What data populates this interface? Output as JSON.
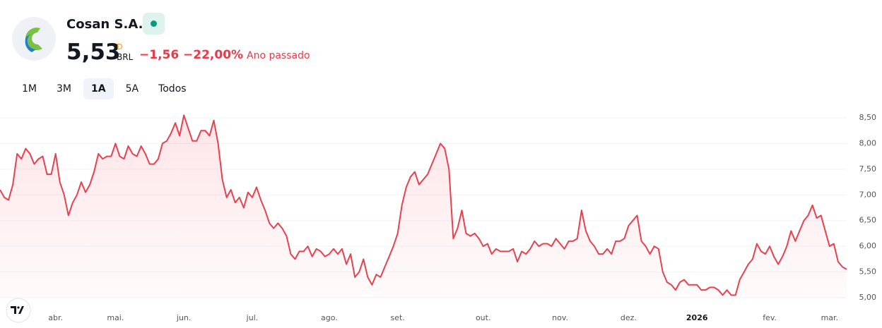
{
  "header": {
    "name": "Cosan S.A.",
    "price": "5,53",
    "flag": "D",
    "currency": "BRL",
    "change": "−1,56",
    "change_pct": "−22,00%",
    "period": "Ano passado"
  },
  "ranges": [
    "1M",
    "3M",
    "1A",
    "5A",
    "Todos"
  ],
  "chart_data": {
    "type": "line",
    "color": "#e8414f",
    "grid": true,
    "ylim": [
      4.93,
      8.72
    ],
    "yticks": [
      {
        "value": 5,
        "label": "5,00"
      },
      {
        "value": 5.5,
        "label": "5,50"
      },
      {
        "value": 6,
        "label": "6,00"
      },
      {
        "value": 6.5,
        "label": "6,50"
      },
      {
        "value": 7,
        "label": "7,00"
      },
      {
        "value": 7.5,
        "label": "7,50"
      },
      {
        "value": 8,
        "label": "8,00"
      },
      {
        "value": 8.5,
        "label": "8,50"
      }
    ],
    "categories": [
      null,
      null,
      null,
      null,
      null,
      null,
      null,
      null,
      null,
      null,
      null,
      null,
      null,
      "abr.",
      null,
      null,
      null,
      null,
      null,
      null,
      null,
      null,
      null,
      null,
      null,
      null,
      null,
      "mai.",
      null,
      null,
      null,
      null,
      null,
      null,
      null,
      null,
      null,
      null,
      null,
      null,
      null,
      null,
      null,
      "jun.",
      null,
      null,
      null,
      null,
      null,
      null,
      null,
      null,
      null,
      null,
      null,
      null,
      null,
      null,
      null,
      "jul.",
      null,
      null,
      null,
      null,
      null,
      null,
      null,
      null,
      null,
      null,
      null,
      null,
      null,
      null,
      null,
      null,
      null,
      "ago.",
      null,
      null,
      null,
      null,
      null,
      null,
      null,
      null,
      null,
      null,
      null,
      null,
      null,
      null,
      null,
      "set.",
      null,
      null,
      null,
      null,
      null,
      null,
      null,
      null,
      null,
      null,
      null,
      null,
      null,
      null,
      null,
      null,
      null,
      null,
      null,
      "out.",
      null,
      null,
      null,
      null,
      null,
      null,
      null,
      null,
      null,
      null,
      null,
      null,
      null,
      null,
      null,
      null,
      null,
      "nov.",
      null,
      null,
      null,
      null,
      null,
      null,
      null,
      null,
      null,
      null,
      null,
      null,
      null,
      null,
      null,
      "dez.",
      null,
      null,
      null,
      null,
      null,
      null,
      null,
      null,
      null,
      null,
      null,
      null,
      null,
      null,
      null,
      "2026",
      null,
      null,
      null,
      null,
      null,
      null,
      null,
      null,
      null,
      null,
      null,
      null,
      null,
      null,
      null,
      null,
      "fev.",
      null,
      null,
      null,
      null,
      null,
      null,
      null,
      null,
      null,
      null,
      null,
      null,
      null,
      "mar.",
      null,
      null,
      null,
      null
    ],
    "values": [
      7.1,
      6.95,
      6.9,
      7.2,
      7.8,
      7.7,
      7.9,
      7.8,
      7.6,
      7.7,
      7.75,
      7.4,
      7.4,
      7.8,
      7.25,
      7.0,
      6.6,
      6.85,
      7.0,
      7.25,
      7.05,
      7.2,
      7.45,
      7.8,
      7.7,
      7.75,
      7.75,
      8.0,
      7.75,
      7.7,
      7.95,
      7.8,
      7.75,
      7.95,
      7.8,
      7.6,
      7.6,
      7.7,
      8.0,
      8.05,
      8.2,
      8.4,
      8.15,
      8.55,
      8.3,
      8.05,
      8.05,
      8.25,
      8.25,
      8.15,
      8.45,
      8.0,
      7.3,
      6.95,
      7.1,
      6.85,
      6.95,
      6.75,
      7.05,
      6.95,
      7.15,
      6.9,
      6.7,
      6.45,
      6.35,
      6.45,
      6.35,
      6.2,
      5.85,
      5.75,
      5.9,
      5.9,
      6.0,
      5.8,
      5.95,
      5.9,
      5.8,
      5.85,
      5.95,
      5.85,
      5.95,
      5.65,
      5.85,
      5.4,
      5.5,
      5.75,
      5.4,
      5.25,
      5.45,
      5.4,
      5.6,
      5.8,
      6.0,
      6.25,
      6.8,
      7.15,
      7.35,
      7.45,
      7.2,
      7.3,
      7.4,
      7.6,
      7.8,
      8.0,
      7.9,
      7.5,
      6.15,
      6.35,
      6.7,
      6.25,
      6.2,
      6.25,
      6.15,
      6.0,
      6.05,
      5.85,
      5.95,
      5.9,
      5.9,
      5.9,
      5.95,
      5.7,
      5.9,
      5.85,
      5.95,
      6.1,
      6.0,
      6.05,
      6.05,
      6.0,
      6.15,
      6.05,
      5.95,
      6.1,
      6.1,
      6.15,
      6.7,
      6.3,
      6.1,
      6.0,
      5.85,
      5.85,
      5.95,
      5.85,
      6.1,
      6.1,
      6.15,
      6.4,
      6.5,
      6.6,
      6.1,
      6.0,
      5.85,
      6.0,
      5.95,
      5.5,
      5.3,
      5.25,
      5.15,
      5.3,
      5.35,
      5.25,
      5.25,
      5.25,
      5.15,
      5.15,
      5.2,
      5.2,
      5.15,
      5.05,
      5.15,
      5.05,
      5.05,
      5.35,
      5.5,
      5.65,
      5.75,
      6.05,
      5.9,
      5.85,
      6.0,
      5.8,
      5.65,
      5.8,
      6.0,
      6.3,
      6.1,
      6.3,
      6.5,
      6.6,
      6.8,
      6.55,
      6.6,
      6.3,
      6.0,
      6.05,
      5.7,
      5.6,
      5.55
    ]
  }
}
